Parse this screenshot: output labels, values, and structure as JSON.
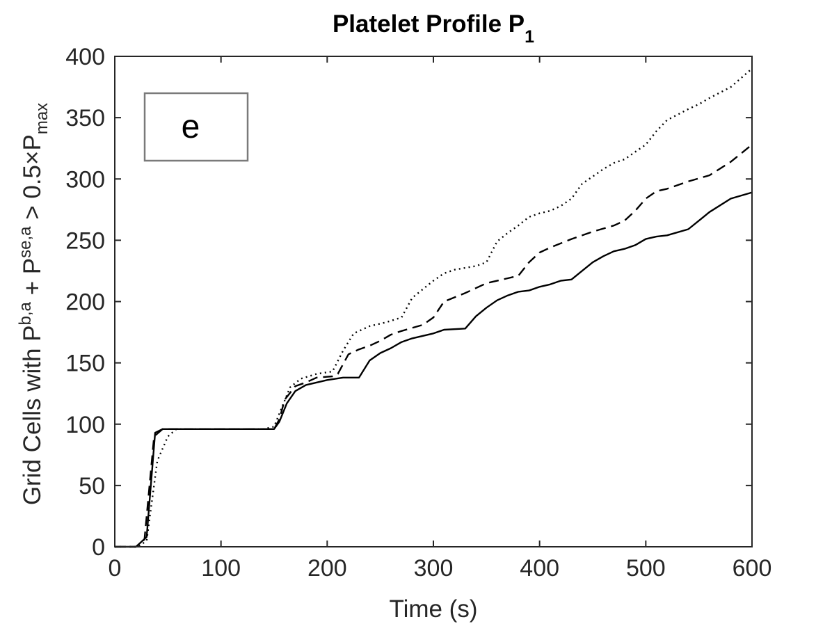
{
  "chart_data": {
    "type": "line",
    "title": "Platelet Profile P",
    "title_subscript": "1",
    "xlabel": "Time (s)",
    "ylabel": {
      "part1": "Grid Cells with P",
      "sup1": "b,a",
      "part2": " + P",
      "sup2": "se,a",
      "part3": " > 0.5",
      "times": "×",
      "part4": "P",
      "sub4": "max"
    },
    "xlim": [
      0,
      600
    ],
    "ylim": [
      0,
      400
    ],
    "xticks": [
      0,
      100,
      200,
      300,
      400,
      500,
      600
    ],
    "yticks": [
      0,
      50,
      100,
      150,
      200,
      250,
      300,
      350,
      400
    ],
    "grid": false,
    "annotation": "e",
    "series": [
      {
        "style": "solid",
        "points": [
          [
            0,
            0
          ],
          [
            20,
            0
          ],
          [
            30,
            8
          ],
          [
            38,
            93
          ],
          [
            45,
            96
          ],
          [
            100,
            96
          ],
          [
            150,
            96
          ],
          [
            155,
            102
          ],
          [
            162,
            117
          ],
          [
            170,
            127
          ],
          [
            180,
            132
          ],
          [
            200,
            136
          ],
          [
            215,
            138
          ],
          [
            230,
            138
          ],
          [
            240,
            152
          ],
          [
            250,
            158
          ],
          [
            260,
            162
          ],
          [
            270,
            167
          ],
          [
            280,
            170
          ],
          [
            300,
            174
          ],
          [
            310,
            177
          ],
          [
            330,
            178
          ],
          [
            340,
            188
          ],
          [
            350,
            195
          ],
          [
            360,
            201
          ],
          [
            370,
            205
          ],
          [
            380,
            208
          ],
          [
            390,
            209
          ],
          [
            400,
            212
          ],
          [
            410,
            214
          ],
          [
            420,
            217
          ],
          [
            430,
            218
          ],
          [
            440,
            225
          ],
          [
            450,
            232
          ],
          [
            460,
            237
          ],
          [
            470,
            241
          ],
          [
            480,
            243
          ],
          [
            490,
            246
          ],
          [
            500,
            251
          ],
          [
            510,
            253
          ],
          [
            520,
            254
          ],
          [
            540,
            259
          ],
          [
            550,
            266
          ],
          [
            560,
            273
          ],
          [
            580,
            284
          ],
          [
            600,
            289
          ]
        ]
      },
      {
        "style": "dashed",
        "points": [
          [
            0,
            0
          ],
          [
            20,
            0
          ],
          [
            28,
            6
          ],
          [
            37,
            90
          ],
          [
            45,
            96
          ],
          [
            100,
            96
          ],
          [
            150,
            96
          ],
          [
            155,
            104
          ],
          [
            160,
            120
          ],
          [
            170,
            131
          ],
          [
            180,
            134
          ],
          [
            190,
            138
          ],
          [
            205,
            139
          ],
          [
            210,
            141
          ],
          [
            220,
            157
          ],
          [
            230,
            161
          ],
          [
            240,
            164
          ],
          [
            250,
            168
          ],
          [
            260,
            173
          ],
          [
            270,
            176
          ],
          [
            290,
            181
          ],
          [
            300,
            187
          ],
          [
            310,
            200
          ],
          [
            330,
            207
          ],
          [
            350,
            215
          ],
          [
            370,
            219
          ],
          [
            380,
            221
          ],
          [
            390,
            232
          ],
          [
            400,
            240
          ],
          [
            410,
            244
          ],
          [
            430,
            251
          ],
          [
            450,
            257
          ],
          [
            470,
            262
          ],
          [
            480,
            266
          ],
          [
            490,
            274
          ],
          [
            500,
            284
          ],
          [
            510,
            290
          ],
          [
            520,
            292
          ],
          [
            540,
            298
          ],
          [
            560,
            303
          ],
          [
            580,
            314
          ],
          [
            600,
            328
          ]
        ]
      },
      {
        "style": "dotted",
        "points": [
          [
            0,
            0
          ],
          [
            22,
            0
          ],
          [
            30,
            5
          ],
          [
            40,
            70
          ],
          [
            50,
            90
          ],
          [
            58,
            96
          ],
          [
            100,
            96
          ],
          [
            140,
            96
          ],
          [
            150,
            98
          ],
          [
            158,
            115
          ],
          [
            165,
            130
          ],
          [
            175,
            137
          ],
          [
            190,
            141
          ],
          [
            205,
            143
          ],
          [
            215,
            160
          ],
          [
            225,
            174
          ],
          [
            240,
            180
          ],
          [
            255,
            183
          ],
          [
            270,
            187
          ],
          [
            280,
            203
          ],
          [
            300,
            217
          ],
          [
            310,
            223
          ],
          [
            320,
            226
          ],
          [
            340,
            229
          ],
          [
            350,
            232
          ],
          [
            360,
            249
          ],
          [
            370,
            256
          ],
          [
            380,
            262
          ],
          [
            390,
            269
          ],
          [
            400,
            272
          ],
          [
            410,
            274
          ],
          [
            420,
            278
          ],
          [
            430,
            284
          ],
          [
            440,
            296
          ],
          [
            450,
            302
          ],
          [
            460,
            308
          ],
          [
            470,
            313
          ],
          [
            480,
            316
          ],
          [
            500,
            328
          ],
          [
            510,
            339
          ],
          [
            520,
            348
          ],
          [
            540,
            357
          ],
          [
            550,
            361
          ],
          [
            560,
            366
          ],
          [
            580,
            375
          ],
          [
            600,
            390
          ]
        ]
      }
    ]
  }
}
